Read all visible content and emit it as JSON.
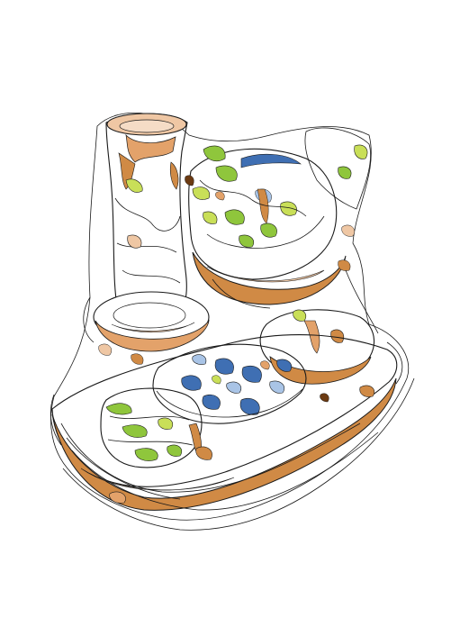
{
  "image": {
    "subject": "",
    "palette": {
      "ink": "#1a1a1a",
      "amber": "#d08a45",
      "peach": "#efc7a4",
      "brown": "#8a4f1e",
      "green": "#8fc63c",
      "yellow_green": "#c9df58",
      "blue": "#3f6fb3",
      "pale_blue": "#a9c4e6",
      "paper": "#ffffff"
    }
  }
}
